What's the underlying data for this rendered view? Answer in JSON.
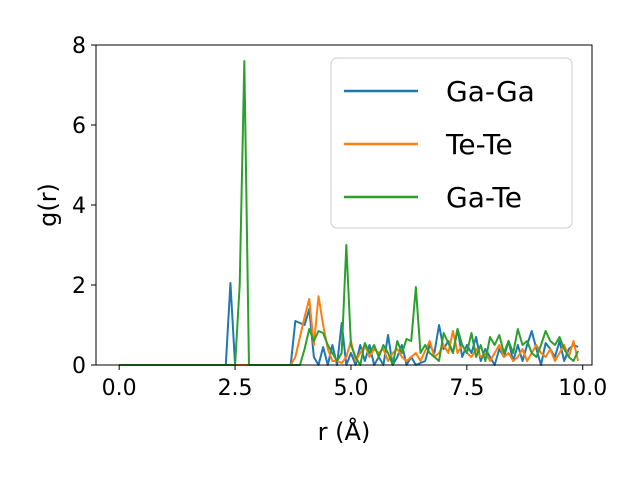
{
  "chart_data": {
    "type": "line",
    "title": "",
    "xlabel": "r (Å)",
    "ylabel": "g(r)",
    "xlim": [
      -0.5,
      10.2
    ],
    "ylim": [
      0,
      8
    ],
    "xticks": [
      0.0,
      2.5,
      5.0,
      7.5,
      10.0
    ],
    "xtick_labels": [
      "0.0",
      "2.5",
      "5.0",
      "7.5",
      "10.0"
    ],
    "yticks": [
      0,
      2,
      4,
      6,
      8
    ],
    "ytick_labels": [
      "0",
      "2",
      "4",
      "6",
      "8"
    ],
    "grid": false,
    "legend_position": "top-right",
    "series": [
      {
        "name": "Ga-Ga",
        "color": "#1f77b4",
        "points": [
          [
            0.0,
            0
          ],
          [
            2.3,
            0
          ],
          [
            2.4,
            2.05
          ],
          [
            2.5,
            0
          ],
          [
            3.7,
            0
          ],
          [
            3.8,
            1.1
          ],
          [
            4.0,
            1.0
          ],
          [
            4.1,
            1.4
          ],
          [
            4.2,
            0.2
          ],
          [
            4.3,
            0
          ],
          [
            4.4,
            0.45
          ],
          [
            4.5,
            0
          ],
          [
            4.6,
            0.5
          ],
          [
            4.7,
            0
          ],
          [
            4.8,
            1.05
          ],
          [
            4.9,
            0
          ],
          [
            5.0,
            0.3
          ],
          [
            5.1,
            0
          ],
          [
            5.2,
            0.5
          ],
          [
            5.3,
            0.1
          ],
          [
            5.4,
            0.5
          ],
          [
            5.5,
            0
          ],
          [
            5.6,
            0.2
          ],
          [
            5.7,
            0
          ],
          [
            5.8,
            0.75
          ],
          [
            5.9,
            0
          ],
          [
            6.0,
            0.2
          ],
          [
            6.1,
            0.5
          ],
          [
            6.2,
            0
          ],
          [
            6.3,
            0.2
          ],
          [
            6.4,
            0
          ],
          [
            6.6,
            0.1
          ],
          [
            6.7,
            0.5
          ],
          [
            6.8,
            0.3
          ],
          [
            6.9,
            1.0
          ],
          [
            7.0,
            0.4
          ],
          [
            7.1,
            0.6
          ],
          [
            7.2,
            0.3
          ],
          [
            7.3,
            0.9
          ],
          [
            7.4,
            0.2
          ],
          [
            7.5,
            0.5
          ],
          [
            7.6,
            0.3
          ],
          [
            7.7,
            0.7
          ],
          [
            7.8,
            0.1
          ],
          [
            7.9,
            0.4
          ],
          [
            8.0,
            0.2
          ],
          [
            8.1,
            0
          ],
          [
            8.2,
            0.4
          ],
          [
            8.3,
            0.2
          ],
          [
            8.4,
            0.6
          ],
          [
            8.5,
            0.1
          ],
          [
            8.6,
            0.5
          ],
          [
            8.7,
            0.1
          ],
          [
            8.8,
            0.5
          ],
          [
            8.9,
            0.85
          ],
          [
            9.0,
            0.4
          ],
          [
            9.1,
            0
          ],
          [
            9.2,
            0.55
          ],
          [
            9.3,
            0.4
          ],
          [
            9.4,
            0.2
          ],
          [
            9.5,
            0.6
          ],
          [
            9.6,
            0.1
          ],
          [
            9.7,
            0.4
          ],
          [
            9.8,
            0.5
          ],
          [
            9.9,
            0.45
          ]
        ]
      },
      {
        "name": "Te-Te",
        "color": "#ff7f0e",
        "points": [
          [
            0.0,
            0
          ],
          [
            3.7,
            0
          ],
          [
            3.8,
            0.2
          ],
          [
            3.9,
            0.7
          ],
          [
            4.0,
            1.2
          ],
          [
            4.1,
            1.65
          ],
          [
            4.2,
            0.5
          ],
          [
            4.3,
            1.72
          ],
          [
            4.4,
            1.0
          ],
          [
            4.5,
            0.4
          ],
          [
            4.6,
            0.1
          ],
          [
            4.7,
            0.1
          ],
          [
            4.8,
            0.05
          ],
          [
            4.9,
            0.2
          ],
          [
            5.0,
            0.6
          ],
          [
            5.1,
            0.1
          ],
          [
            5.2,
            0.3
          ],
          [
            5.3,
            0.5
          ],
          [
            5.4,
            0.2
          ],
          [
            5.5,
            0.4
          ],
          [
            5.6,
            0.3
          ],
          [
            5.7,
            0.4
          ],
          [
            5.8,
            0.1
          ],
          [
            5.9,
            0.3
          ],
          [
            6.0,
            0.4
          ],
          [
            6.1,
            0.2
          ],
          [
            6.2,
            0.1
          ],
          [
            6.3,
            0.2
          ],
          [
            6.4,
            0.3
          ],
          [
            6.5,
            0.1
          ],
          [
            6.6,
            0.35
          ],
          [
            6.7,
            0.6
          ],
          [
            6.8,
            0.2
          ],
          [
            6.9,
            0.3
          ],
          [
            7.0,
            0.5
          ],
          [
            7.1,
            0.3
          ],
          [
            7.2,
            0.85
          ],
          [
            7.3,
            0.3
          ],
          [
            7.4,
            0.5
          ],
          [
            7.5,
            0.3
          ],
          [
            7.6,
            0.2
          ],
          [
            7.7,
            0.4
          ],
          [
            7.8,
            0.2
          ],
          [
            7.9,
            0.3
          ],
          [
            8.0,
            0.1
          ],
          [
            8.1,
            0.3
          ],
          [
            8.2,
            0.5
          ],
          [
            8.3,
            0.2
          ],
          [
            8.4,
            0.3
          ],
          [
            8.5,
            0.1
          ],
          [
            8.6,
            0.2
          ],
          [
            8.7,
            0.4
          ],
          [
            8.8,
            0.1
          ],
          [
            8.9,
            0.3
          ],
          [
            9.0,
            0.5
          ],
          [
            9.1,
            0.3
          ],
          [
            9.2,
            0.2
          ],
          [
            9.3,
            0.4
          ],
          [
            9.4,
            0.1
          ],
          [
            9.5,
            0.3
          ],
          [
            9.6,
            0.5
          ],
          [
            9.7,
            0.2
          ],
          [
            9.8,
            0.6
          ],
          [
            9.9,
            0.1
          ]
        ]
      },
      {
        "name": "Ga-Te",
        "color": "#2ca02c",
        "points": [
          [
            0.0,
            0
          ],
          [
            2.5,
            0
          ],
          [
            2.6,
            2.0
          ],
          [
            2.7,
            7.6
          ],
          [
            2.8,
            0
          ],
          [
            3.9,
            0
          ],
          [
            4.0,
            0.4
          ],
          [
            4.1,
            0.9
          ],
          [
            4.2,
            0.6
          ],
          [
            4.3,
            0.85
          ],
          [
            4.4,
            0.8
          ],
          [
            4.5,
            0.5
          ],
          [
            4.6,
            0.3
          ],
          [
            4.7,
            0.1
          ],
          [
            4.8,
            0.3
          ],
          [
            4.9,
            3.0
          ],
          [
            5.0,
            0.5
          ],
          [
            5.1,
            0.2
          ],
          [
            5.2,
            0
          ],
          [
            5.3,
            0.55
          ],
          [
            5.4,
            0.3
          ],
          [
            5.5,
            0.5
          ],
          [
            5.6,
            0.2
          ],
          [
            5.7,
            0.5
          ],
          [
            5.8,
            0.3
          ],
          [
            5.9,
            0
          ],
          [
            6.0,
            0.6
          ],
          [
            6.1,
            0.3
          ],
          [
            6.2,
            0.65
          ],
          [
            6.3,
            0.6
          ],
          [
            6.4,
            1.95
          ],
          [
            6.5,
            0.3
          ],
          [
            6.6,
            0.5
          ],
          [
            6.7,
            0.3
          ],
          [
            6.8,
            0.2
          ],
          [
            6.9,
            0.1
          ],
          [
            7.0,
            0.8
          ],
          [
            7.1,
            0.55
          ],
          [
            7.2,
            0.3
          ],
          [
            7.3,
            0.9
          ],
          [
            7.4,
            0.5
          ],
          [
            7.5,
            0.3
          ],
          [
            7.6,
            0.8
          ],
          [
            7.7,
            0.2
          ],
          [
            7.8,
            0.5
          ],
          [
            7.9,
            0.1
          ],
          [
            8.0,
            0.7
          ],
          [
            8.1,
            0.5
          ],
          [
            8.2,
            0.75
          ],
          [
            8.3,
            0.3
          ],
          [
            8.4,
            0.6
          ],
          [
            8.5,
            0.3
          ],
          [
            8.6,
            0.9
          ],
          [
            8.7,
            0.5
          ],
          [
            8.8,
            0.6
          ],
          [
            8.9,
            0.3
          ],
          [
            9.0,
            0.2
          ],
          [
            9.1,
            0.5
          ],
          [
            9.2,
            0.85
          ],
          [
            9.3,
            0.6
          ],
          [
            9.4,
            0.5
          ],
          [
            9.5,
            0.7
          ],
          [
            9.6,
            0.4
          ],
          [
            9.7,
            0.2
          ],
          [
            9.8,
            0.1
          ],
          [
            9.9,
            0.35
          ]
        ]
      }
    ]
  }
}
